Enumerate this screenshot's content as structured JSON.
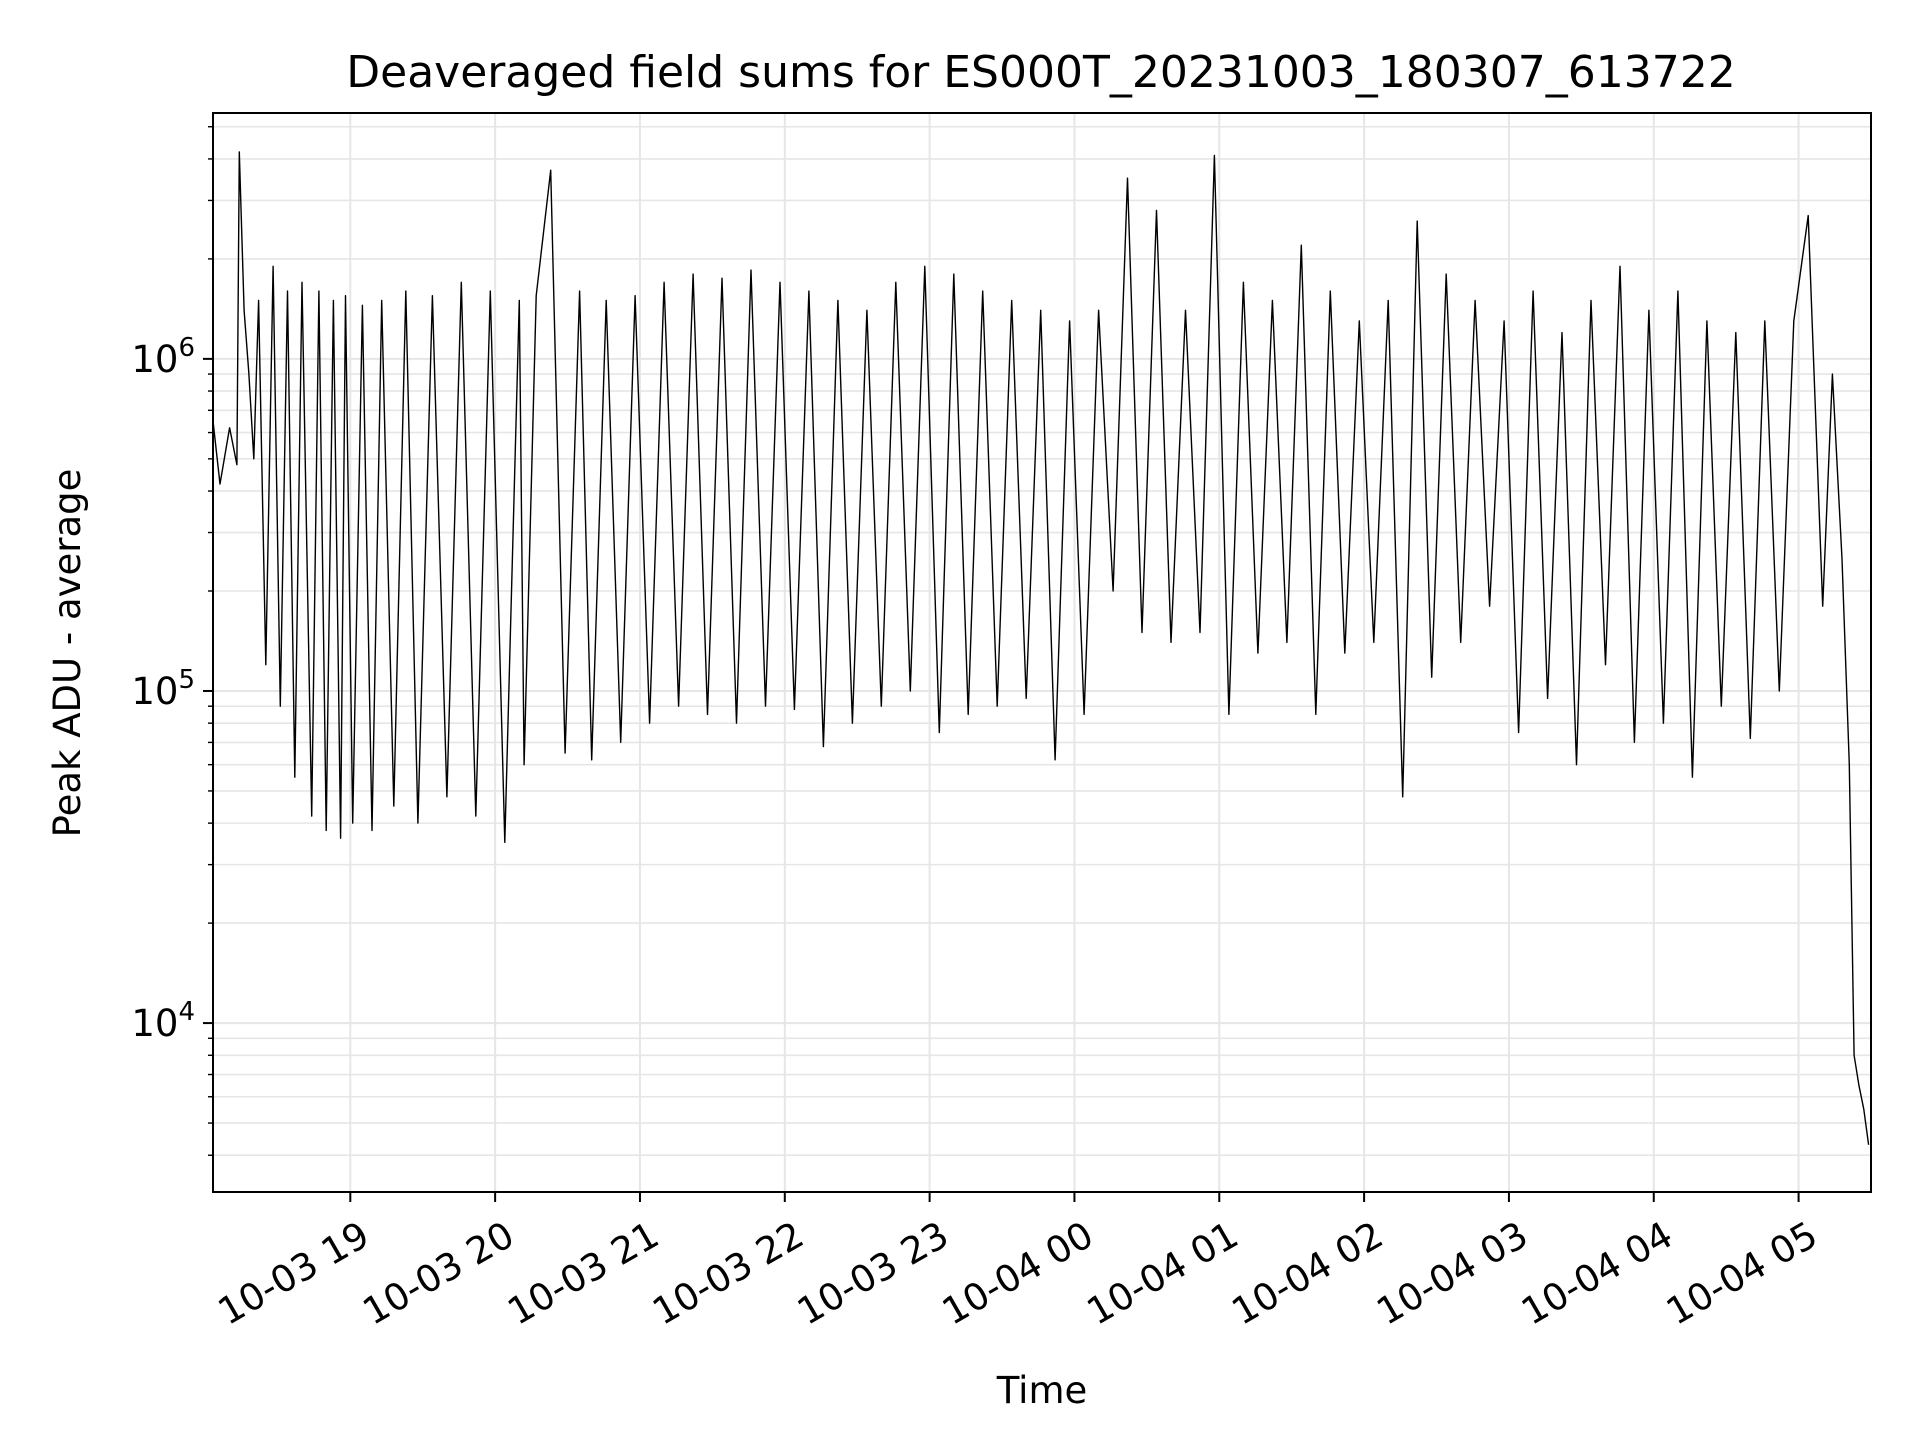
{
  "chart_data": {
    "type": "line",
    "title": "Deaveraged field sums for ES000T_20231003_180307_613722",
    "xlabel": "Time",
    "ylabel": "Peak ADU - average",
    "y_scale": "log",
    "ylim": [
      3100,
      5500000
    ],
    "xlim": [
      "2023-10-03 18:03:07",
      "2023-10-04 05:30:00"
    ],
    "grid": true,
    "line_color": "#000000",
    "grid_color": "#e6e6e6",
    "x_ticks": [
      {
        "t": "2023-10-03 19:00",
        "label": "10-03 19"
      },
      {
        "t": "2023-10-03 20:00",
        "label": "10-03 20"
      },
      {
        "t": "2023-10-03 21:00",
        "label": "10-03 21"
      },
      {
        "t": "2023-10-03 22:00",
        "label": "10-03 22"
      },
      {
        "t": "2023-10-03 23:00",
        "label": "10-03 23"
      },
      {
        "t": "2023-10-04 00:00",
        "label": "10-04 00"
      },
      {
        "t": "2023-10-04 01:00",
        "label": "10-04 01"
      },
      {
        "t": "2023-10-04 02:00",
        "label": "10-04 02"
      },
      {
        "t": "2023-10-04 03:00",
        "label": "10-04 03"
      },
      {
        "t": "2023-10-04 04:00",
        "label": "10-04 04"
      },
      {
        "t": "2023-10-04 05:00",
        "label": "10-04 05"
      }
    ],
    "y_ticks": [
      {
        "value": 10000,
        "base": "10",
        "exp": "4"
      },
      {
        "value": 100000,
        "base": "10",
        "exp": "5"
      },
      {
        "value": 1000000,
        "base": "10",
        "exp": "6"
      }
    ],
    "series": [
      {
        "x": [
          "2023-10-03 18:03:07",
          "2023-10-03 18:06",
          "2023-10-03 18:10",
          "2023-10-03 18:13",
          "2023-10-03 18:14",
          "2023-10-03 18:16",
          "2023-10-03 18:18",
          "2023-10-03 18:20",
          "2023-10-03 18:22",
          "2023-10-03 18:25",
          "2023-10-03 18:28",
          "2023-10-03 18:31",
          "2023-10-03 18:34",
          "2023-10-03 18:37",
          "2023-10-03 18:40",
          "2023-10-03 18:44",
          "2023-10-03 18:47",
          "2023-10-03 18:50",
          "2023-10-03 18:53",
          "2023-10-03 18:56",
          "2023-10-03 18:58",
          "2023-10-03 19:01",
          "2023-10-03 19:05",
          "2023-10-03 19:09",
          "2023-10-03 19:13",
          "2023-10-03 19:18",
          "2023-10-03 19:23",
          "2023-10-03 19:28",
          "2023-10-03 19:34",
          "2023-10-03 19:40",
          "2023-10-03 19:46",
          "2023-10-03 19:52",
          "2023-10-03 19:58",
          "2023-10-03 20:04",
          "2023-10-03 20:10",
          "2023-10-03 20:12",
          "2023-10-03 20:17",
          "2023-10-03 20:23",
          "2023-10-03 20:29",
          "2023-10-03 20:35",
          "2023-10-03 20:40",
          "2023-10-03 20:46",
          "2023-10-03 20:52",
          "2023-10-03 20:58",
          "2023-10-03 21:04",
          "2023-10-03 21:10",
          "2023-10-03 21:16",
          "2023-10-03 21:22",
          "2023-10-03 21:28",
          "2023-10-03 21:34",
          "2023-10-03 21:40",
          "2023-10-03 21:46",
          "2023-10-03 21:52",
          "2023-10-03 21:58",
          "2023-10-03 22:04",
          "2023-10-03 22:10",
          "2023-10-03 22:16",
          "2023-10-03 22:22",
          "2023-10-03 22:28",
          "2023-10-03 22:34",
          "2023-10-03 22:40",
          "2023-10-03 22:46",
          "2023-10-03 22:52",
          "2023-10-03 22:58",
          "2023-10-03 23:04",
          "2023-10-03 23:10",
          "2023-10-03 23:16",
          "2023-10-03 23:22",
          "2023-10-03 23:28",
          "2023-10-03 23:34",
          "2023-10-03 23:40",
          "2023-10-03 23:46",
          "2023-10-03 23:52",
          "2023-10-03 23:58",
          "2023-10-04 00:04",
          "2023-10-04 00:10",
          "2023-10-04 00:16",
          "2023-10-04 00:22",
          "2023-10-04 00:28",
          "2023-10-04 00:34",
          "2023-10-04 00:40",
          "2023-10-04 00:46",
          "2023-10-04 00:52",
          "2023-10-04 00:58",
          "2023-10-04 01:04",
          "2023-10-04 01:10",
          "2023-10-04 01:16",
          "2023-10-04 01:22",
          "2023-10-04 01:28",
          "2023-10-04 01:34",
          "2023-10-04 01:40",
          "2023-10-04 01:46",
          "2023-10-04 01:52",
          "2023-10-04 01:58",
          "2023-10-04 02:04",
          "2023-10-04 02:10",
          "2023-10-04 02:16",
          "2023-10-04 02:22",
          "2023-10-04 02:28",
          "2023-10-04 02:34",
          "2023-10-04 02:40",
          "2023-10-04 02:46",
          "2023-10-04 02:52",
          "2023-10-04 02:58",
          "2023-10-04 03:04",
          "2023-10-04 03:10",
          "2023-10-04 03:16",
          "2023-10-04 03:22",
          "2023-10-04 03:28",
          "2023-10-04 03:34",
          "2023-10-04 03:40",
          "2023-10-04 03:46",
          "2023-10-04 03:52",
          "2023-10-04 03:58",
          "2023-10-04 04:04",
          "2023-10-04 04:10",
          "2023-10-04 04:16",
          "2023-10-04 04:22",
          "2023-10-04 04:28",
          "2023-10-04 04:34",
          "2023-10-04 04:40",
          "2023-10-04 04:46",
          "2023-10-04 04:52",
          "2023-10-04 04:58",
          "2023-10-04 05:04",
          "2023-10-04 05:10",
          "2023-10-04 05:14",
          "2023-10-04 05:18",
          "2023-10-04 05:21",
          "2023-10-04 05:23",
          "2023-10-04 05:25",
          "2023-10-04 05:27",
          "2023-10-04 05:29"
        ],
        "y": [
          650000,
          420000,
          620000,
          480000,
          4200000,
          1400000,
          900000,
          500000,
          1500000,
          120000,
          1900000,
          90000,
          1600000,
          55000,
          1700000,
          42000,
          1600000,
          38000,
          1500000,
          36000,
          1550000,
          40000,
          1450000,
          38000,
          1500000,
          45000,
          1600000,
          40000,
          1550000,
          48000,
          1700000,
          42000,
          1600000,
          35000,
          1500000,
          60000,
          1550000,
          3700000,
          65000,
          1600000,
          62000,
          1500000,
          70000,
          1550000,
          80000,
          1700000,
          90000,
          1800000,
          85000,
          1750000,
          80000,
          1850000,
          90000,
          1700000,
          88000,
          1600000,
          68000,
          1500000,
          80000,
          1400000,
          90000,
          1700000,
          100000,
          1900000,
          75000,
          1800000,
          85000,
          1600000,
          90000,
          1500000,
          95000,
          1400000,
          62000,
          1300000,
          85000,
          1400000,
          200000,
          3500000,
          150000,
          2800000,
          140000,
          1400000,
          150000,
          4100000,
          85000,
          1700000,
          130000,
          1500000,
          140000,
          2200000,
          85000,
          1600000,
          130000,
          1300000,
          140000,
          1500000,
          48000,
          2600000,
          110000,
          1800000,
          140000,
          1500000,
          180000,
          1300000,
          75000,
          1600000,
          95000,
          1200000,
          60000,
          1500000,
          120000,
          1900000,
          70000,
          1400000,
          80000,
          1600000,
          55000,
          1300000,
          90000,
          1200000,
          72000,
          1300000,
          100000,
          1300000,
          2700000,
          180000,
          900000,
          250000,
          60000,
          8000,
          6500,
          5500,
          4300
        ]
      }
    ]
  }
}
